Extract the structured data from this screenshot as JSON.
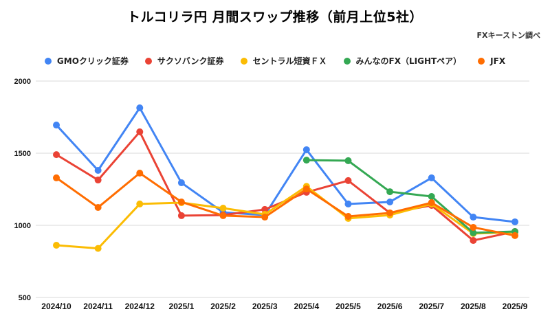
{
  "chart_data": {
    "type": "line",
    "title": "トルコリラ円 月間スワップ推移（前月上位5社）",
    "source": "FXキーストン調べ",
    "xlabel": "",
    "ylabel": "",
    "ylim": [
      500,
      2000
    ],
    "yticks": [
      2000,
      1500,
      1000,
      500
    ],
    "grid": true,
    "legend_position": "top",
    "categories": [
      "2024/10",
      "2024/11",
      "2024/12",
      "2025/1",
      "2025/2",
      "2025/3",
      "2025/4",
      "2025/5",
      "2025/6",
      "2025/7",
      "2025/8",
      "2025/9"
    ],
    "series": [
      {
        "name": "GMOクリック証券",
        "color": "#4285f4",
        "values": [
          1695,
          1381,
          1814,
          1295,
          1090,
          1071,
          1524,
          1148,
          1162,
          1329,
          1057,
          1024
        ]
      },
      {
        "name": "サクソバンク証券",
        "color": "#ea4335",
        "values": [
          1490,
          1314,
          1648,
          1067,
          1071,
          1110,
          1229,
          1310,
          1086,
          1138,
          895,
          957
        ]
      },
      {
        "name": "セントラル短資ＦＸ",
        "color": "#fbbc04",
        "values": [
          862,
          840,
          1148,
          1157,
          1119,
          1076,
          1270,
          1048,
          1071,
          1148,
          943,
          952
        ]
      },
      {
        "name": "みんなのFX（LIGHTペア）",
        "color": "#34a853",
        "values": [
          null,
          null,
          null,
          null,
          null,
          null,
          1452,
          1448,
          1233,
          1200,
          948,
          957
        ]
      },
      {
        "name": "JFX",
        "color": "#ff6d01",
        "values": [
          1329,
          1124,
          1362,
          1162,
          1067,
          1057,
          1252,
          1062,
          1086,
          1157,
          986,
          929
        ]
      }
    ]
  }
}
